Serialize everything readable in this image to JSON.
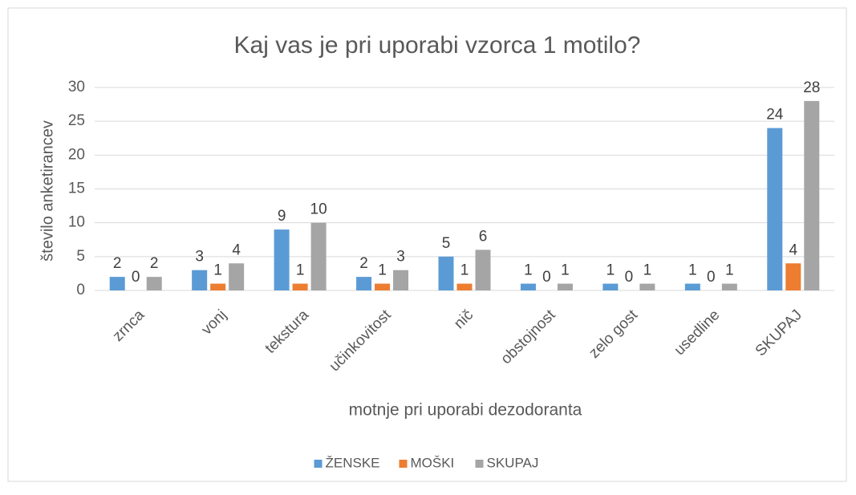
{
  "chart_data": {
    "type": "bar",
    "title": "Kaj vas je pri uporabi vzorca 1 motilo?",
    "x_label": "motnje pri uporabi dezodoranta",
    "y_label": "število anketirancev",
    "categories": [
      "zrnca",
      "vonj",
      "tekstura",
      "učinkovitost",
      "nič",
      "obstojnost",
      "zelo gost",
      "usedline",
      "SKUPAJ"
    ],
    "series": [
      {
        "name": "ŽENSKE",
        "color": "#5b9bd5",
        "values": [
          2,
          3,
          9,
          2,
          5,
          1,
          1,
          1,
          24
        ]
      },
      {
        "name": "MOŠKI",
        "color": "#ed7d31",
        "values": [
          0,
          1,
          1,
          1,
          1,
          0,
          0,
          0,
          4
        ]
      },
      {
        "name": "SKUPAJ",
        "color": "#a5a5a5",
        "values": [
          2,
          4,
          10,
          3,
          6,
          1,
          1,
          1,
          28
        ]
      }
    ],
    "ylim": [
      0,
      30
    ],
    "yticks": [
      0,
      5,
      10,
      15,
      20,
      25,
      30
    ],
    "grid": true,
    "legend": "bottom"
  }
}
